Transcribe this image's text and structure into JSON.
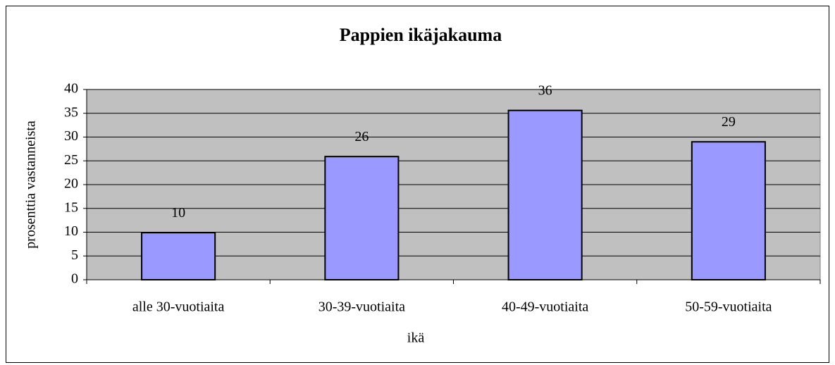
{
  "chart_data": {
    "type": "bar",
    "title": "Pappien ikäjakauma",
    "x_label": "ikä",
    "y_label": "prosenttia vastanneista",
    "categories": [
      "alle 30-vuotiaita",
      "30-39-vuotiaita",
      "40-49-vuotiaita",
      "50-59-vuotiaita"
    ],
    "values": [
      9.9,
      25.9,
      35.6,
      29.0
    ],
    "value_labels": [
      "10",
      "26",
      "36",
      "29"
    ],
    "color": "#9999ff",
    "ylim": [
      0,
      40
    ],
    "yticks": [
      0,
      5,
      10,
      15,
      20,
      25,
      30,
      35,
      40
    ],
    "grid": true
  }
}
